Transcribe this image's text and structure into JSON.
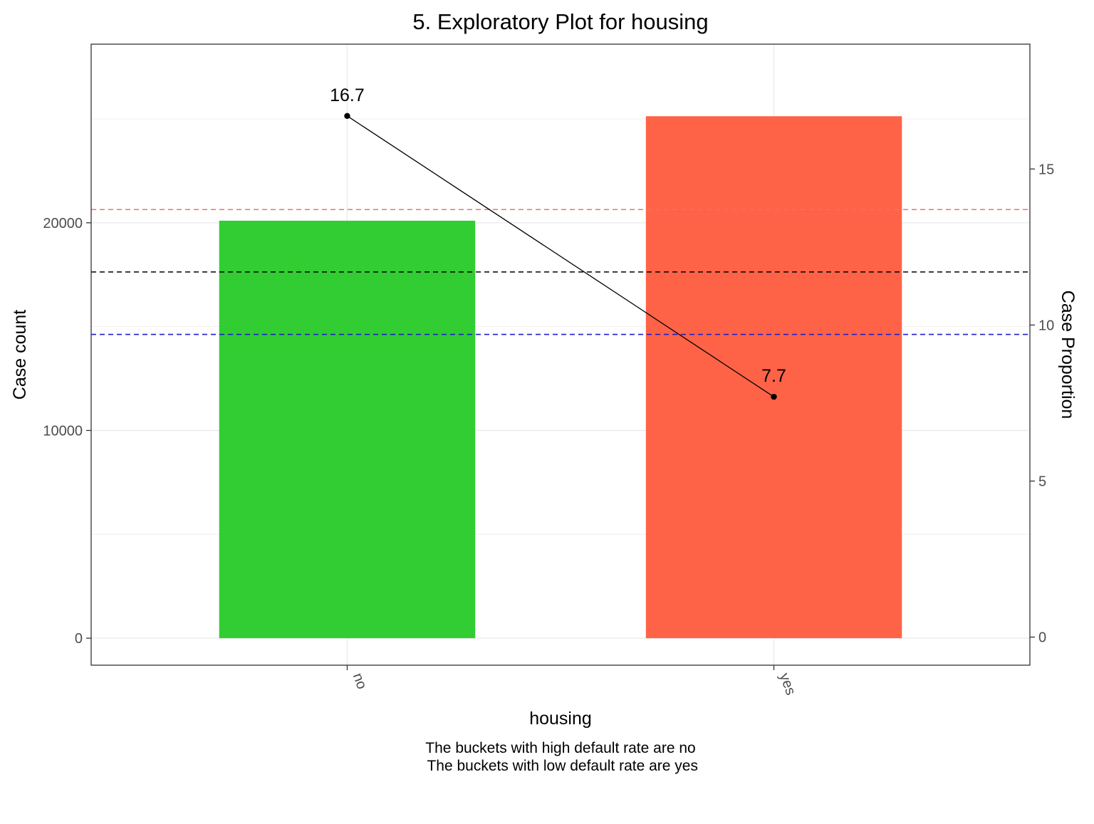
{
  "chart_data": {
    "type": "bar",
    "title": "5. Exploratory Plot for housing",
    "xlabel": "housing",
    "ylabel": "Case count",
    "y2label": "Case Proportion",
    "categories": [
      "no",
      "yes"
    ],
    "values": [
      20100,
      25130
    ],
    "bar_colors": [
      "#32CD32",
      "#FF6347"
    ],
    "ylim": [
      -1300,
      28600
    ],
    "yticks": [
      0,
      10000,
      20000
    ],
    "y2lim": [
      -0.9,
      19.0
    ],
    "y2ticks": [
      0,
      5,
      10,
      15
    ],
    "line_series": {
      "name": "Case Proportion",
      "values": [
        16.7,
        7.7
      ],
      "labels": [
        "16.7",
        "7.7"
      ],
      "color": "#000000"
    },
    "reference_lines": [
      {
        "axis": "y2",
        "value": 13.7,
        "color": "#E8756A",
        "style": "dashed"
      },
      {
        "axis": "y2",
        "value": 11.7,
        "color": "#000000",
        "style": "dashed"
      },
      {
        "axis": "y2",
        "value": 9.7,
        "color": "#1F1FCC",
        "style": "dashed"
      }
    ],
    "grid": true,
    "caption_lines": [
      "The buckets with high default rate are no",
      " The buckets with low default rate are yes"
    ]
  },
  "colors": {
    "grid": "#EBEBEB",
    "axis_text": "#4D4D4D",
    "panel_border": "#333333"
  }
}
